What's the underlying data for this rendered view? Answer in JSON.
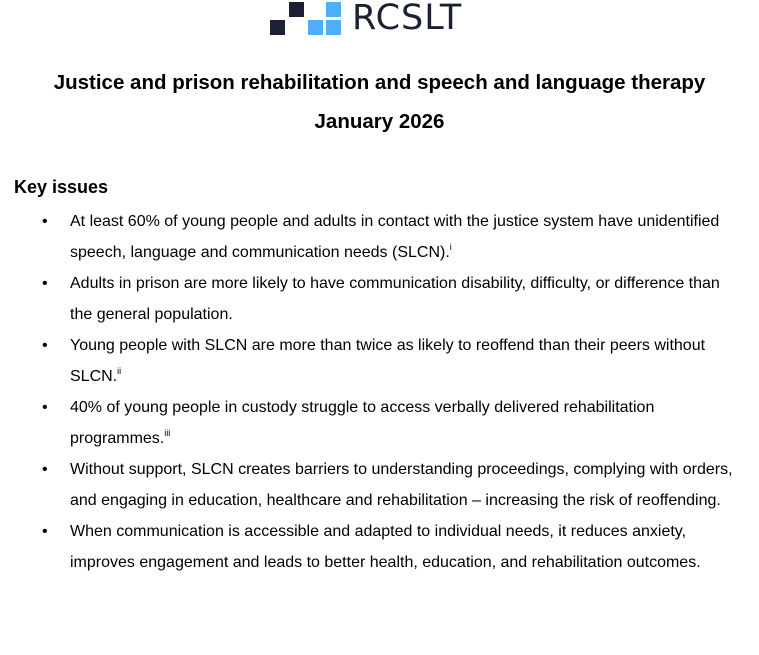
{
  "logo": {
    "text": "RCSLT",
    "dark": "#1b2035",
    "blue": "#4eaef8"
  },
  "title": {
    "line1": "Justice and prison rehabilitation and speech and language therapy",
    "line2": "January 2026"
  },
  "section": {
    "heading": "Key issues",
    "items": [
      {
        "text": "At least 60% of young people and adults in contact with the justice system have unidentified speech, language and communication needs (SLCN).",
        "ref": "i"
      },
      {
        "text": "Adults in prison are more likely to have communication disability, difficulty, or difference than the general population.",
        "ref": ""
      },
      {
        "text": "Young people with SLCN are more than twice as likely to reoffend than their peers without SLCN.",
        "ref": "ii"
      },
      {
        "text": "40% of young people in custody struggle to access verbally delivered rehabilitation programmes.",
        "ref": "iii"
      },
      {
        "text": "Without support, SLCN creates barriers to understanding proceedings, complying with orders, and engaging in education, healthcare and rehabilitation – increasing the risk of reoffending.",
        "ref": ""
      },
      {
        "text": "When communication is accessible and adapted to individual needs, it reduces anxiety, improves engagement and leads to better health, education, and rehabilitation outcomes.",
        "ref": ""
      }
    ]
  }
}
